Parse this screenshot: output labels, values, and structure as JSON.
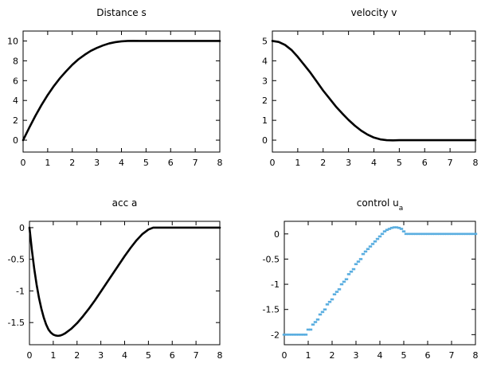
{
  "chart_data": [
    {
      "type": "line",
      "title": "Distance s",
      "xlim": [
        0,
        8
      ],
      "ylim": [
        -1.2,
        11
      ],
      "xticks": [
        0,
        1,
        2,
        3,
        4,
        5,
        6,
        7,
        8
      ],
      "yticks": [
        0,
        2,
        4,
        6,
        8,
        10
      ],
      "ytick_labels": [
        "0",
        "2",
        "4",
        "6",
        "8",
        "10"
      ],
      "color": "#000000",
      "series": [
        {
          "name": "s",
          "x": [
            0,
            0.25,
            0.5,
            0.75,
            1.0,
            1.25,
            1.5,
            1.75,
            2.0,
            2.25,
            2.5,
            2.75,
            3.0,
            3.25,
            3.5,
            3.75,
            4.0,
            4.25,
            4.5,
            4.75,
            5.0,
            5.5,
            6.0,
            6.5,
            7.0,
            7.5,
            8.0
          ],
          "y": [
            0,
            1.25,
            2.45,
            3.55,
            4.55,
            5.45,
            6.25,
            6.95,
            7.6,
            8.15,
            8.6,
            9.0,
            9.3,
            9.55,
            9.75,
            9.88,
            9.96,
            10.0,
            10.01,
            10.0,
            10.0,
            10.0,
            10.0,
            10.0,
            10.0,
            10.0,
            10.0
          ]
        }
      ]
    },
    {
      "type": "line",
      "title": "velocity v",
      "xlim": [
        0,
        8
      ],
      "ylim": [
        -0.6,
        5.5
      ],
      "xticks": [
        0,
        1,
        2,
        3,
        4,
        5,
        6,
        7,
        8
      ],
      "yticks": [
        0,
        1,
        2,
        3,
        4,
        5
      ],
      "ytick_labels": [
        "0",
        "1",
        "2",
        "3",
        "4",
        "5"
      ],
      "color": "#000000",
      "series": [
        {
          "name": "v",
          "x": [
            0,
            0.25,
            0.5,
            0.75,
            1.0,
            1.25,
            1.5,
            1.75,
            2.0,
            2.25,
            2.5,
            2.75,
            3.0,
            3.25,
            3.5,
            3.75,
            4.0,
            4.25,
            4.5,
            4.75,
            5.0,
            5.5,
            6.0,
            6.5,
            7.0,
            7.5,
            8.0
          ],
          "y": [
            5.0,
            4.95,
            4.8,
            4.55,
            4.2,
            3.8,
            3.4,
            2.95,
            2.5,
            2.1,
            1.7,
            1.35,
            1.02,
            0.73,
            0.48,
            0.28,
            0.13,
            0.04,
            0.0,
            -0.01,
            0.0,
            0.0,
            0.0,
            0.0,
            0.0,
            0.0,
            0.0
          ]
        }
      ]
    },
    {
      "type": "line",
      "title": "acc a",
      "xlim": [
        0,
        8
      ],
      "ylim": [
        -1.85,
        0.1
      ],
      "xticks": [
        0,
        1,
        2,
        3,
        4,
        5,
        6,
        7,
        8
      ],
      "yticks": [
        0,
        -0.5,
        -1,
        -1.5
      ],
      "ytick_labels": [
        "0",
        "-0.5",
        "-1",
        "-1.5"
      ],
      "color": "#000000",
      "series": [
        {
          "name": "a",
          "x": [
            0,
            0.1,
            0.2,
            0.3,
            0.4,
            0.5,
            0.6,
            0.7,
            0.8,
            0.9,
            1.0,
            1.1,
            1.2,
            1.3,
            1.4,
            1.5,
            1.75,
            2.0,
            2.25,
            2.5,
            2.75,
            3.0,
            3.25,
            3.5,
            3.75,
            4.0,
            4.25,
            4.5,
            4.75,
            5.0,
            5.2,
            5.4,
            6.0,
            7.0,
            8.0
          ],
          "y": [
            0,
            -0.35,
            -0.65,
            -0.9,
            -1.11,
            -1.28,
            -1.42,
            -1.53,
            -1.61,
            -1.66,
            -1.69,
            -1.705,
            -1.71,
            -1.705,
            -1.69,
            -1.67,
            -1.6,
            -1.51,
            -1.4,
            -1.28,
            -1.15,
            -1.01,
            -0.87,
            -0.73,
            -0.59,
            -0.45,
            -0.32,
            -0.2,
            -0.1,
            -0.03,
            0.0,
            0.0,
            0.0,
            0.0,
            0.0
          ]
        }
      ]
    },
    {
      "type": "scatter",
      "title": "control u",
      "title_sub": "a",
      "xlim": [
        0,
        8
      ],
      "ylim": [
        -2.2,
        0.25
      ],
      "xticks": [
        0,
        1,
        2,
        3,
        4,
        5,
        6,
        7,
        8
      ],
      "yticks": [
        0,
        -0.5,
        -1,
        -1.5,
        -2
      ],
      "ytick_labels": [
        "0",
        "-0.5",
        "-1",
        "-1.5",
        "-2"
      ],
      "color": "#5aaee0",
      "series": [
        {
          "name": "ua",
          "x": [
            0,
            0.1,
            0.2,
            0.3,
            0.4,
            0.5,
            0.6,
            0.7,
            0.8,
            0.9,
            1.0,
            1.1,
            1.2,
            1.3,
            1.4,
            1.5,
            1.6,
            1.7,
            1.8,
            1.9,
            2.0,
            2.1,
            2.2,
            2.3,
            2.4,
            2.5,
            2.6,
            2.7,
            2.8,
            2.9,
            3.0,
            3.1,
            3.2,
            3.3,
            3.4,
            3.5,
            3.6,
            3.7,
            3.8,
            3.9,
            4.0,
            4.1,
            4.2,
            4.3,
            4.4,
            4.5,
            4.6,
            4.7,
            4.8,
            4.9,
            5.0,
            5.1,
            5.2,
            5.3,
            5.4,
            5.5,
            5.6,
            5.7,
            5.8,
            5.9,
            6.0,
            6.1,
            6.2,
            6.3,
            6.4,
            6.5,
            6.6,
            6.7,
            6.8,
            6.9,
            7.0,
            7.1,
            7.2,
            7.3,
            7.4,
            7.5,
            7.6,
            7.7,
            7.8,
            7.9,
            8.0
          ],
          "y": [
            -2.0,
            -2.0,
            -2.0,
            -2.0,
            -2.0,
            -2.0,
            -2.0,
            -2.0,
            -2.0,
            -2.0,
            -1.9,
            -1.9,
            -1.8,
            -1.75,
            -1.7,
            -1.6,
            -1.55,
            -1.5,
            -1.4,
            -1.35,
            -1.3,
            -1.2,
            -1.15,
            -1.1,
            -1.0,
            -0.95,
            -0.9,
            -0.8,
            -0.75,
            -0.7,
            -0.6,
            -0.55,
            -0.5,
            -0.4,
            -0.35,
            -0.3,
            -0.25,
            -0.2,
            -0.15,
            -0.1,
            -0.05,
            0.0,
            0.05,
            0.08,
            0.1,
            0.12,
            0.13,
            0.13,
            0.12,
            0.1,
            0.05,
            0.0,
            0.0,
            0.0,
            0.0,
            0.0,
            0.0,
            0.0,
            0.0,
            0.0,
            0.0,
            0.0,
            0.0,
            0.0,
            0.0,
            0.0,
            0.0,
            0.0,
            0.0,
            0.0,
            0.0,
            0.0,
            0.0,
            0.0,
            0.0,
            0.0,
            0.0,
            0.0,
            0.0,
            0.0,
            0.0
          ]
        }
      ]
    }
  ]
}
